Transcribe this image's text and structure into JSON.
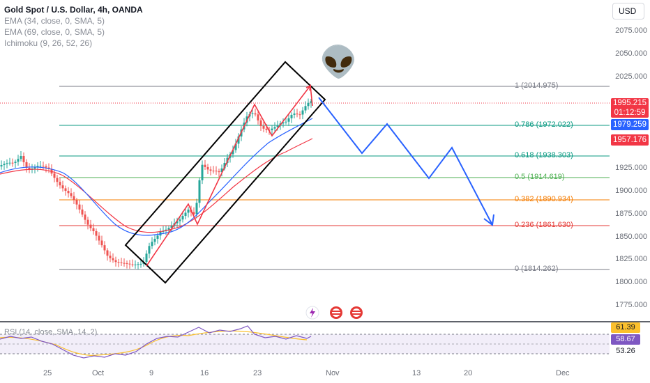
{
  "chart": {
    "title": "Gold Spot / U.S. Dollar, 4h, OANDA",
    "indicators": [
      "EMA (34, close, 0, SMA, 5)",
      "EMA (69, close, 0, SMA, 5)",
      "Ichimoku (9, 26, 52, 26)"
    ],
    "currency": "USD",
    "price_axis_ticks": [
      "2075.000",
      "2050.000",
      "2025.000",
      "1925.000",
      "1900.000",
      "1875.000",
      "1850.000",
      "1825.000",
      "1800.000",
      "1775.000"
    ],
    "price_badges": {
      "last": "1995.215",
      "countdown": "01:12:59",
      "ema34": "1979.259",
      "ema69": "1957.176"
    },
    "time_ticks": [
      "25",
      "Oct",
      "9",
      "16",
      "23",
      "Nov",
      "13",
      "20",
      "Dec"
    ],
    "fib_levels": [
      {
        "label": "1 (2014.975)",
        "color": "#787b86"
      },
      {
        "label": "0.786 (1972.022)",
        "color": "#089981"
      },
      {
        "label": "0.618 (1938.303)",
        "color": "#089981"
      },
      {
        "label": "0.5 (1914.619)",
        "color": "#4caf50"
      },
      {
        "label": "0.382 (1890.934)",
        "color": "#f57c00"
      },
      {
        "label": "0.236 (1861.630)",
        "color": "#e53935"
      },
      {
        "label": "0 (1814.262)",
        "color": "#787b86"
      }
    ],
    "alien_emoji": "👽",
    "rsi": {
      "legend": "RSI (14, close, SMA, 14, 2)",
      "values": [
        "61.39",
        "58.67",
        "53.26"
      ]
    },
    "colors": {
      "up": "#26a69a",
      "down": "#ef5350",
      "ema34": "#2962ff",
      "ema69": "#f23645",
      "projection": "#2962ff",
      "channel": "#000000"
    }
  }
}
